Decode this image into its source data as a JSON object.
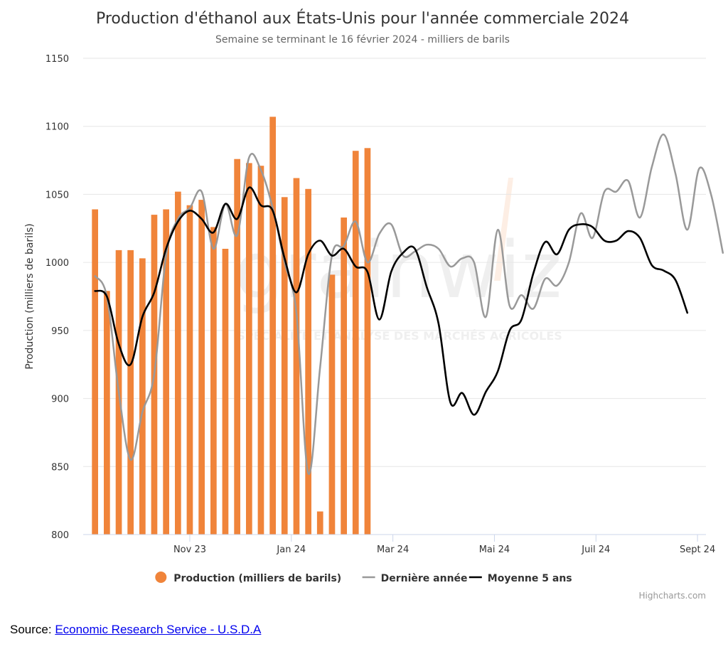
{
  "chart_data": {
    "type": "bar",
    "title": "Production d'éthanol aux États-Unis pour l'année commerciale 2024",
    "subtitle": "Semaine se terminant le 16 février 2024 - milliers de barils",
    "ylabel": "Production (milliers de barils)",
    "ylim": [
      800,
      1150
    ],
    "yticks": [
      800,
      850,
      900,
      950,
      1000,
      1050,
      1100,
      1150
    ],
    "xlim": [
      "2023-09-01",
      "2024-09-03"
    ],
    "xticks": [
      {
        "date": "2023-11-03",
        "label": "Nov 23"
      },
      {
        "date": "2024-01-02",
        "label": "Jan 24"
      },
      {
        "date": "2024-03-02",
        "label": "Mar 24"
      },
      {
        "date": "2024-05-01",
        "label": "Mai 24"
      },
      {
        "date": "2024-06-30",
        "label": "Juil 24"
      },
      {
        "date": "2024-08-29",
        "label": "Sept 24"
      }
    ],
    "grid": true,
    "legend_position": "bottom-center",
    "credits": "Highcharts.com",
    "watermark": "GRAINWIZ — SPÉCIALITÉ ET ANALYSE DES MARCHÉS AGRICOLES",
    "series": [
      {
        "name": "Production (milliers de barils)",
        "type": "bar",
        "color": "#f0843a",
        "points": [
          [
            "2023-09-08",
            1039
          ],
          [
            "2023-09-15",
            979
          ],
          [
            "2023-09-22",
            1009
          ],
          [
            "2023-09-29",
            1009
          ],
          [
            "2023-10-06",
            1003
          ],
          [
            "2023-10-13",
            1035
          ],
          [
            "2023-10-20",
            1039
          ],
          [
            "2023-10-27",
            1052
          ],
          [
            "2023-11-03",
            1042
          ],
          [
            "2023-11-10",
            1046
          ],
          [
            "2023-11-17",
            1026
          ],
          [
            "2023-11-24",
            1010
          ],
          [
            "2023-12-01",
            1076
          ],
          [
            "2023-12-08",
            1073
          ],
          [
            "2023-12-15",
            1071
          ],
          [
            "2023-12-22",
            1107
          ],
          [
            "2023-12-29",
            1048
          ],
          [
            "2024-01-05",
            1062
          ],
          [
            "2024-01-12",
            1054
          ],
          [
            "2024-01-19",
            817
          ],
          [
            "2024-01-26",
            991
          ],
          [
            "2024-02-02",
            1033
          ],
          [
            "2024-02-09",
            1082
          ],
          [
            "2024-02-16",
            1084
          ]
        ]
      },
      {
        "name": "Dernière année",
        "type": "line",
        "color": "#999999",
        "points": [
          [
            "2023-09-08",
            990
          ],
          [
            "2023-09-15",
            975
          ],
          [
            "2023-09-22",
            905
          ],
          [
            "2023-09-29",
            855
          ],
          [
            "2023-10-06",
            890
          ],
          [
            "2023-10-13",
            918
          ],
          [
            "2023-10-20",
            1005
          ],
          [
            "2023-10-27",
            1032
          ],
          [
            "2023-11-03",
            1040
          ],
          [
            "2023-11-10",
            1052
          ],
          [
            "2023-11-17",
            1010
          ],
          [
            "2023-11-24",
            1043
          ],
          [
            "2023-12-01",
            1020
          ],
          [
            "2023-12-08",
            1077
          ],
          [
            "2023-12-15",
            1068
          ],
          [
            "2023-12-22",
            1040
          ],
          [
            "2023-12-29",
            1000
          ],
          [
            "2024-01-05",
            963
          ],
          [
            "2024-01-12",
            845
          ],
          [
            "2024-01-19",
            923
          ],
          [
            "2024-01-26",
            1005
          ],
          [
            "2024-02-02",
            1012
          ],
          [
            "2024-02-09",
            1030
          ],
          [
            "2024-02-16",
            1000
          ],
          [
            "2024-02-23",
            1021
          ],
          [
            "2024-03-01",
            1028
          ],
          [
            "2024-03-08",
            1005
          ],
          [
            "2024-03-15",
            1008
          ],
          [
            "2024-03-22",
            1013
          ],
          [
            "2024-03-29",
            1010
          ],
          [
            "2024-04-05",
            997
          ],
          [
            "2024-04-12",
            1003
          ],
          [
            "2024-04-19",
            1000
          ],
          [
            "2024-04-26",
            960
          ],
          [
            "2024-05-03",
            1024
          ],
          [
            "2024-05-10",
            968
          ],
          [
            "2024-05-17",
            976
          ],
          [
            "2024-05-24",
            966
          ],
          [
            "2024-05-31",
            988
          ],
          [
            "2024-06-07",
            983
          ],
          [
            "2024-06-14",
            1000
          ],
          [
            "2024-06-21",
            1036
          ],
          [
            "2024-06-28",
            1018
          ],
          [
            "2024-07-05",
            1052
          ],
          [
            "2024-07-12",
            1052
          ],
          [
            "2024-07-19",
            1060
          ],
          [
            "2024-07-26",
            1033
          ],
          [
            "2024-08-02",
            1070
          ],
          [
            "2024-08-09",
            1094
          ],
          [
            "2024-08-16",
            1065
          ],
          [
            "2024-08-23",
            1024
          ],
          [
            "2024-08-30",
            1069
          ],
          [
            "2024-09-06",
            1050
          ],
          [
            "2024-09-13",
            1007
          ]
        ]
      },
      {
        "name": "Moyenne 5 ans",
        "type": "line",
        "color": "#000000",
        "points": [
          [
            "2023-09-08",
            979
          ],
          [
            "2023-09-15",
            975
          ],
          [
            "2023-09-22",
            940
          ],
          [
            "2023-09-29",
            925
          ],
          [
            "2023-10-06",
            960
          ],
          [
            "2023-10-13",
            978
          ],
          [
            "2023-10-20",
            1010
          ],
          [
            "2023-10-27",
            1030
          ],
          [
            "2023-11-03",
            1038
          ],
          [
            "2023-11-10",
            1032
          ],
          [
            "2023-11-17",
            1022
          ],
          [
            "2023-11-24",
            1043
          ],
          [
            "2023-12-01",
            1032
          ],
          [
            "2023-12-08",
            1055
          ],
          [
            "2023-12-15",
            1042
          ],
          [
            "2023-12-22",
            1038
          ],
          [
            "2023-12-29",
            1003
          ],
          [
            "2024-01-05",
            978
          ],
          [
            "2024-01-12",
            1006
          ],
          [
            "2024-01-19",
            1016
          ],
          [
            "2024-01-26",
            1005
          ],
          [
            "2024-02-02",
            1010
          ],
          [
            "2024-02-09",
            997
          ],
          [
            "2024-02-16",
            993
          ],
          [
            "2024-02-23",
            958
          ],
          [
            "2024-03-01",
            993
          ],
          [
            "2024-03-08",
            1007
          ],
          [
            "2024-03-15",
            1010
          ],
          [
            "2024-03-22",
            982
          ],
          [
            "2024-03-29",
            955
          ],
          [
            "2024-04-05",
            897
          ],
          [
            "2024-04-12",
            904
          ],
          [
            "2024-04-19",
            888
          ],
          [
            "2024-04-26",
            905
          ],
          [
            "2024-05-03",
            920
          ],
          [
            "2024-05-10",
            950
          ],
          [
            "2024-05-17",
            958
          ],
          [
            "2024-05-24",
            992
          ],
          [
            "2024-05-31",
            1015
          ],
          [
            "2024-06-07",
            1006
          ],
          [
            "2024-06-14",
            1024
          ],
          [
            "2024-06-21",
            1028
          ],
          [
            "2024-06-28",
            1026
          ],
          [
            "2024-07-05",
            1016
          ],
          [
            "2024-07-12",
            1016
          ],
          [
            "2024-07-19",
            1023
          ],
          [
            "2024-07-26",
            1018
          ],
          [
            "2024-08-02",
            998
          ],
          [
            "2024-08-09",
            994
          ],
          [
            "2024-08-16",
            987
          ],
          [
            "2024-08-23",
            963
          ]
        ]
      }
    ]
  },
  "source": {
    "label": "Source: ",
    "link_text": "Economic Research Service - U.S.D.A"
  }
}
